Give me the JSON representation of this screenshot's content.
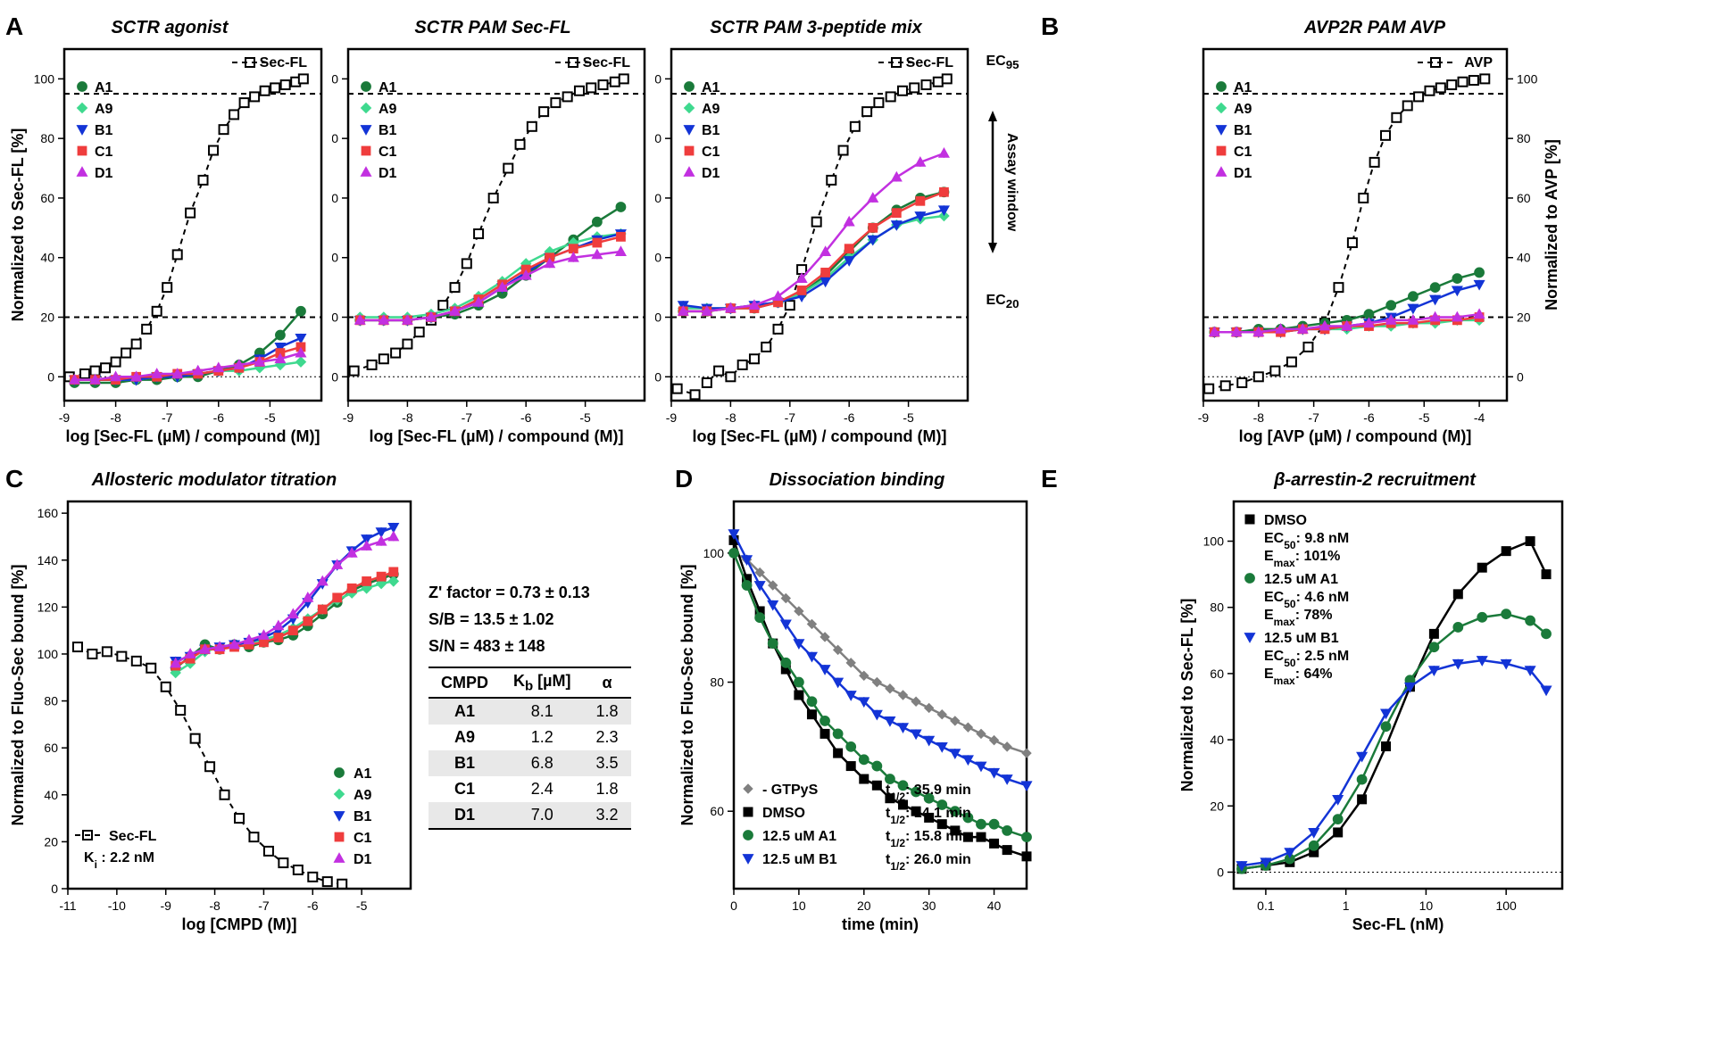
{
  "colors": {
    "A1": "#1a7a3a",
    "A9": "#3fd98f",
    "B1": "#1334d6",
    "C1": "#ef3d3d",
    "D1": "#c230e0",
    "secfl": "#000",
    "gtpys": "#808080",
    "dmso": "#000",
    "axis": "#000",
    "bg": "#ffffff"
  },
  "compounds": [
    "A1",
    "A9",
    "B1",
    "C1",
    "D1"
  ],
  "panelA": {
    "label": "A",
    "ylabel": "Normalized to Sec-FL [%]",
    "xlabel": "log [Sec-FL (µM) / compound (M)]",
    "xlim": [
      -9,
      -4
    ],
    "ylim": [
      -8,
      110
    ],
    "yticks": [
      0,
      20,
      40,
      60,
      80,
      100
    ],
    "xticks": [
      -9,
      -8,
      -7,
      -6,
      -5
    ],
    "ec95": 95,
    "ec20": 20,
    "subplots": [
      {
        "title": "SCTR agonist",
        "sec_label": "Sec-FL",
        "secfl": {
          "x": [
            -8.9,
            -8.6,
            -8.4,
            -8.2,
            -8.0,
            -7.8,
            -7.6,
            -7.4,
            -7.2,
            -7.0,
            -6.8,
            -6.55,
            -6.3,
            -6.1,
            -5.9,
            -5.7,
            -5.5,
            -5.3,
            -5.1,
            -4.9,
            -4.7,
            -4.5,
            -4.35
          ],
          "y": [
            0,
            1,
            2,
            3,
            5,
            8,
            11,
            16,
            22,
            30,
            41,
            55,
            66,
            76,
            83,
            88,
            92,
            94,
            96,
            97,
            98,
            99,
            100
          ]
        },
        "cmpd": {
          "x": [
            -8.8,
            -8.4,
            -8.0,
            -7.6,
            -7.2,
            -6.8,
            -6.4,
            -6.0,
            -5.6,
            -5.2,
            -4.8,
            -4.4
          ],
          "A1": [
            -2,
            -2,
            -2,
            -1,
            -1,
            0,
            0,
            2,
            4,
            8,
            14,
            22
          ],
          "A9": [
            -1,
            -1,
            -1,
            -1,
            0,
            0,
            1,
            2,
            2,
            3,
            4,
            5
          ],
          "B1": [
            -1,
            -1,
            -1,
            -1,
            0,
            0,
            1,
            2,
            3,
            6,
            10,
            13
          ],
          "C1": [
            -1,
            -1,
            -1,
            0,
            0,
            1,
            1,
            2,
            3,
            5,
            8,
            10
          ],
          "D1": [
            -1,
            -1,
            0,
            0,
            1,
            1,
            2,
            3,
            4,
            5,
            6,
            8
          ]
        }
      },
      {
        "title": "SCTR PAM Sec-FL",
        "sec_label": "Sec-FL",
        "secfl": {
          "x": [
            -8.9,
            -8.6,
            -8.4,
            -8.2,
            -8.0,
            -7.8,
            -7.6,
            -7.4,
            -7.2,
            -7.0,
            -6.8,
            -6.55,
            -6.3,
            -6.1,
            -5.9,
            -5.7,
            -5.5,
            -5.3,
            -5.1,
            -4.9,
            -4.7,
            -4.5,
            -4.35
          ],
          "y": [
            2,
            4,
            6,
            8,
            11,
            15,
            19,
            24,
            30,
            38,
            48,
            60,
            70,
            78,
            84,
            89,
            92,
            94,
            96,
            97,
            98,
            99,
            100
          ]
        },
        "cmpd": {
          "x": [
            -8.8,
            -8.4,
            -8.0,
            -7.6,
            -7.2,
            -6.8,
            -6.4,
            -6.0,
            -5.6,
            -5.2,
            -4.8,
            -4.4
          ],
          "A1": [
            19,
            19,
            19,
            20,
            21,
            24,
            28,
            34,
            40,
            46,
            52,
            57
          ],
          "A9": [
            20,
            20,
            20,
            21,
            23,
            27,
            32,
            38,
            42,
            45,
            47,
            48
          ],
          "B1": [
            19,
            19,
            19,
            20,
            22,
            25,
            30,
            35,
            40,
            43,
            46,
            48
          ],
          "C1": [
            19,
            19,
            19,
            20,
            22,
            26,
            31,
            36,
            40,
            43,
            45,
            47
          ],
          "D1": [
            19,
            19,
            19,
            20,
            22,
            25,
            30,
            34,
            38,
            40,
            41,
            42
          ]
        }
      },
      {
        "title": "SCTR PAM 3-peptide mix",
        "sec_label": "Sec-FL",
        "secfl": {
          "x": [
            -8.9,
            -8.6,
            -8.4,
            -8.2,
            -8.0,
            -7.8,
            -7.6,
            -7.4,
            -7.2,
            -7.0,
            -6.8,
            -6.55,
            -6.3,
            -6.1,
            -5.9,
            -5.7,
            -5.5,
            -5.3,
            -5.1,
            -4.9,
            -4.7,
            -4.5,
            -4.35
          ],
          "y": [
            -4,
            -6,
            -2,
            2,
            0,
            4,
            6,
            10,
            16,
            24,
            36,
            52,
            66,
            76,
            84,
            89,
            92,
            94,
            96,
            97,
            98,
            99,
            100
          ]
        },
        "cmpd": {
          "x": [
            -8.8,
            -8.4,
            -8.0,
            -7.6,
            -7.2,
            -6.8,
            -6.4,
            -6.0,
            -5.6,
            -5.2,
            -4.8,
            -4.4
          ],
          "A1": [
            22,
            22,
            23,
            23,
            25,
            28,
            34,
            42,
            50,
            56,
            60,
            62
          ],
          "A9": [
            23,
            23,
            23,
            24,
            25,
            28,
            33,
            40,
            46,
            51,
            53,
            54
          ],
          "B1": [
            24,
            23,
            23,
            24,
            25,
            27,
            32,
            39,
            46,
            51,
            54,
            56
          ],
          "C1": [
            22,
            22,
            23,
            23,
            25,
            29,
            35,
            43,
            50,
            55,
            59,
            62
          ],
          "D1": [
            22,
            22,
            23,
            24,
            27,
            33,
            42,
            52,
            60,
            67,
            72,
            75
          ]
        },
        "side_labels": {
          "ec95": "EC",
          "ec95_sub": "95",
          "ec20": "EC",
          "ec20_sub": "20",
          "window": "Assay window"
        }
      }
    ]
  },
  "panelB": {
    "label": "B",
    "title": "AVP2R PAM AVP",
    "sec_label": "AVP",
    "ylabel": "Normalized to AVP [%]",
    "xlabel": "log [AVP (µM) / compound (M)]",
    "xlim": [
      -9,
      -3.5
    ],
    "ylim": [
      -8,
      110
    ],
    "yticks": [
      0,
      20,
      40,
      60,
      80,
      100
    ],
    "xticks": [
      -9,
      -8,
      -7,
      -6,
      -5,
      -4
    ],
    "ec95": 95,
    "ec20": 20,
    "avp": {
      "x": [
        -8.9,
        -8.6,
        -8.3,
        -8.0,
        -7.7,
        -7.4,
        -7.1,
        -6.8,
        -6.55,
        -6.3,
        -6.1,
        -5.9,
        -5.7,
        -5.5,
        -5.3,
        -5.1,
        -4.9,
        -4.7,
        -4.5,
        -4.3,
        -4.1,
        -3.9
      ],
      "y": [
        -4,
        -3,
        -2,
        0,
        2,
        5,
        10,
        18,
        30,
        45,
        60,
        72,
        81,
        87,
        91,
        94,
        96,
        97,
        98,
        99,
        99.5,
        100
      ]
    },
    "cmpd": {
      "x": [
        -8.8,
        -8.4,
        -8.0,
        -7.6,
        -7.2,
        -6.8,
        -6.4,
        -6.0,
        -5.6,
        -5.2,
        -4.8,
        -4.4,
        -4.0
      ],
      "A1": [
        15,
        15,
        16,
        16,
        17,
        18,
        19,
        21,
        24,
        27,
        30,
        33,
        35
      ],
      "A9": [
        15,
        15,
        15,
        15,
        16,
        16,
        16,
        17,
        17,
        18,
        18,
        19,
        19
      ],
      "B1": [
        15,
        15,
        15,
        15,
        16,
        16,
        17,
        18,
        20,
        23,
        26,
        29,
        31
      ],
      "C1": [
        15,
        15,
        15,
        15,
        16,
        16,
        17,
        17,
        18,
        18,
        19,
        19,
        20
      ],
      "D1": [
        15,
        15,
        15,
        16,
        16,
        17,
        17,
        18,
        19,
        19,
        20,
        20,
        21
      ]
    }
  },
  "panelC": {
    "label": "C",
    "title": "Allosteric modulator titration",
    "ylabel": "Normalized to Fluo-Sec bound [%]",
    "xlabel": "log [CMPD (M)]",
    "xlim": [
      -11,
      -4
    ],
    "ylim": [
      0,
      165
    ],
    "yticks": [
      0,
      20,
      40,
      60,
      80,
      100,
      120,
      140,
      160
    ],
    "xticks": [
      -11,
      -10,
      -9,
      -8,
      -7,
      -6,
      -5
    ],
    "sec_label": "Sec-FL",
    "ki_label": "K",
    "ki_sub": "i",
    "ki_val": ": 2.2 nM",
    "secfl": {
      "x": [
        -10.8,
        -10.5,
        -10.2,
        -9.9,
        -9.6,
        -9.3,
        -9.0,
        -8.7,
        -8.4,
        -8.1,
        -7.8,
        -7.5,
        -7.2,
        -6.9,
        -6.6,
        -6.3,
        -6.0,
        -5.7,
        -5.4
      ],
      "y": [
        103,
        100,
        101,
        99,
        97,
        94,
        86,
        76,
        64,
        52,
        40,
        30,
        22,
        16,
        11,
        8,
        5,
        3,
        2
      ]
    },
    "cmpd": {
      "x": [
        -8.8,
        -8.5,
        -8.2,
        -7.9,
        -7.6,
        -7.3,
        -7.0,
        -6.7,
        -6.4,
        -6.1,
        -5.8,
        -5.5,
        -5.2,
        -4.9,
        -4.6,
        -4.35
      ],
      "A1": [
        94,
        99,
        104,
        102,
        104,
        103,
        105,
        106,
        108,
        112,
        117,
        122,
        127,
        130,
        132,
        134
      ],
      "A9": [
        92,
        96,
        101,
        103,
        104,
        105,
        106,
        108,
        111,
        115,
        119,
        123,
        126,
        128,
        130,
        131
      ],
      "B1": [
        97,
        99,
        102,
        103,
        104,
        105,
        107,
        110,
        115,
        122,
        130,
        138,
        144,
        149,
        152,
        154
      ],
      "C1": [
        95,
        98,
        102,
        102,
        103,
        104,
        105,
        107,
        110,
        114,
        119,
        124,
        128,
        131,
        133,
        135
      ],
      "D1": [
        96,
        100,
        102,
        103,
        104,
        106,
        108,
        112,
        117,
        124,
        131,
        138,
        143,
        146,
        148,
        150
      ]
    },
    "stats": {
      "z": "Z' factor = 0.73 ± 0.13",
      "sb": "S/B = 13.5 ± 1.02",
      "sn": "S/N = 483 ± 148"
    },
    "table": {
      "headers": [
        "CMPD",
        "K_b [µM]",
        "α"
      ],
      "rows": [
        [
          "A1",
          "8.1",
          "1.8"
        ],
        [
          "A9",
          "1.2",
          "2.3"
        ],
        [
          "B1",
          "6.8",
          "3.5"
        ],
        [
          "C1",
          "2.4",
          "1.8"
        ],
        [
          "D1",
          "7.0",
          "3.2"
        ]
      ]
    }
  },
  "panelD": {
    "label": "D",
    "title": "Dissociation binding",
    "ylabel": "Normalized to Fluo-Sec bound [%]",
    "xlabel": "time (min)",
    "xlim": [
      0,
      45
    ],
    "ylim": [
      48,
      108
    ],
    "yticks": [
      60,
      80,
      100
    ],
    "xticks": [
      0,
      10,
      20,
      30,
      40
    ],
    "series": {
      "gtpys": {
        "label": "- GTPyS",
        "thalf": "35.9 min",
        "x": [
          0,
          2,
          4,
          6,
          8,
          10,
          12,
          14,
          16,
          18,
          20,
          22,
          24,
          26,
          28,
          30,
          32,
          34,
          36,
          38,
          40,
          42,
          45
        ],
        "y": [
          100,
          99,
          97,
          95,
          93,
          91,
          89,
          87,
          85,
          83,
          81,
          80,
          79,
          78,
          77,
          76,
          75,
          74,
          73,
          72,
          71,
          70,
          69
        ]
      },
      "dmso": {
        "label": "DMSO",
        "thalf": "14.1 min",
        "x": [
          0,
          2,
          4,
          6,
          8,
          10,
          12,
          14,
          16,
          18,
          20,
          22,
          24,
          26,
          28,
          30,
          32,
          34,
          36,
          38,
          40,
          42,
          45
        ],
        "y": [
          102,
          96,
          91,
          86,
          82,
          78,
          75,
          72,
          69,
          67,
          65,
          64,
          62,
          61,
          60,
          59,
          58,
          57,
          56,
          56,
          55,
          54,
          53
        ]
      },
      "a1": {
        "label": "12.5 uM A1",
        "thalf": "15.8 min",
        "x": [
          0,
          2,
          4,
          6,
          8,
          10,
          12,
          14,
          16,
          18,
          20,
          22,
          24,
          26,
          28,
          30,
          32,
          34,
          36,
          38,
          40,
          42,
          45
        ],
        "y": [
          100,
          95,
          90,
          86,
          83,
          80,
          77,
          74,
          72,
          70,
          68,
          67,
          65,
          64,
          63,
          62,
          61,
          60,
          59,
          58,
          58,
          57,
          56
        ]
      },
      "b1": {
        "label": "12.5 uM B1",
        "thalf": "26.0 min",
        "x": [
          0,
          2,
          4,
          6,
          8,
          10,
          12,
          14,
          16,
          18,
          20,
          22,
          24,
          26,
          28,
          30,
          32,
          34,
          36,
          38,
          40,
          42,
          45
        ],
        "y": [
          103,
          99,
          95,
          92,
          89,
          86,
          84,
          82,
          80,
          78,
          77,
          75,
          74,
          73,
          72,
          71,
          70,
          69,
          68,
          67,
          66,
          65,
          64
        ]
      }
    },
    "thalf_label": "t",
    "thalf_sub": "1/2"
  },
  "panelE": {
    "label": "E",
    "title": "β-arrestin-2 recruitment",
    "ylabel": "Normalized to Sec-FL [%]",
    "xlabel": "Sec-FL (nM)",
    "xticks_labels": [
      "0.1",
      "1",
      "10",
      "100"
    ],
    "xticks_pos": [
      -1,
      0,
      1,
      2
    ],
    "xlim": [
      -1.4,
      2.7
    ],
    "ylim": [
      -5,
      112
    ],
    "yticks": [
      0,
      20,
      40,
      60,
      80,
      100
    ],
    "series": {
      "dmso": {
        "label": "DMSO",
        "ec50": "9.8 nM",
        "emax": "101%",
        "color": "#000",
        "x": [
          -1.3,
          -1.0,
          -0.7,
          -0.4,
          -0.1,
          0.2,
          0.5,
          0.8,
          1.1,
          1.4,
          1.7,
          2.0,
          2.3,
          2.5
        ],
        "y": [
          1,
          2,
          3,
          6,
          12,
          22,
          38,
          56,
          72,
          84,
          92,
          97,
          100,
          90
        ]
      },
      "a1": {
        "label": "12.5 uM A1",
        "ec50": "4.6 nM",
        "emax": "78%",
        "color": "#1a7a3a",
        "x": [
          -1.3,
          -1.0,
          -0.7,
          -0.4,
          -0.1,
          0.2,
          0.5,
          0.8,
          1.1,
          1.4,
          1.7,
          2.0,
          2.3,
          2.5
        ],
        "y": [
          1,
          2,
          4,
          8,
          16,
          28,
          44,
          58,
          68,
          74,
          77,
          78,
          76,
          72
        ]
      },
      "b1": {
        "label": "12.5 uM B1",
        "ec50": "2.5 nM",
        "emax": "64%",
        "color": "#1334d6",
        "x": [
          -1.3,
          -1.0,
          -0.7,
          -0.4,
          -0.1,
          0.2,
          0.5,
          0.8,
          1.1,
          1.4,
          1.7,
          2.0,
          2.3,
          2.5
        ],
        "y": [
          2,
          3,
          6,
          12,
          22,
          35,
          48,
          56,
          61,
          63,
          64,
          63,
          61,
          55
        ]
      }
    },
    "ec50_label": "EC",
    "ec50_sub": "50",
    "emax_label": "E",
    "emax_sub": "max"
  }
}
